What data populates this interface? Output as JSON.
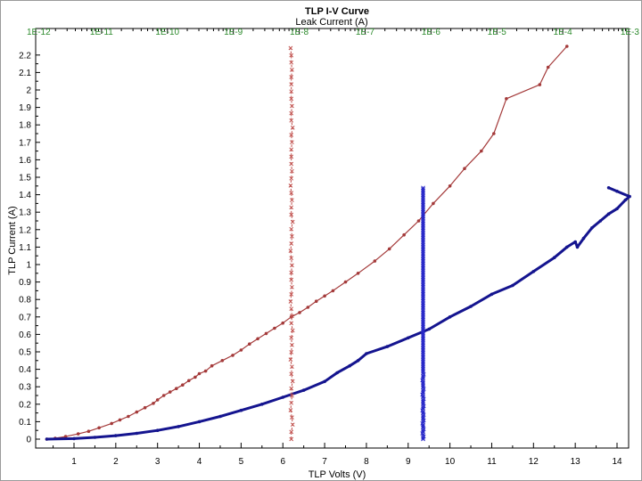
{
  "chart_data": {
    "type": "line",
    "title": "TLP I-V Curve",
    "top_axis_label": "Leak Current (A)",
    "xlabel": "TLP Volts (V)",
    "ylabel": "TLP Current (A)",
    "xlim": [
      0,
      14.3
    ],
    "ylim": [
      0,
      2.25
    ],
    "x_ticks": [
      "1",
      "2",
      "3",
      "4",
      "5",
      "6",
      "7",
      "8",
      "9",
      "10",
      "11",
      "12",
      "13",
      "14"
    ],
    "y_ticks": [
      "0",
      "0.1",
      "0.2",
      "0.3",
      "0.4",
      "0.5",
      "0.6",
      "0.7",
      "0.8",
      "0.9",
      "1",
      "1.1",
      "1.2",
      "1.3",
      "1.4",
      "1.5",
      "1.6",
      "1.7",
      "1.8",
      "1.9",
      "2",
      "2.1",
      "2.2"
    ],
    "top_ticks": [
      "1E-12",
      "1E-11",
      "1E-10",
      "1E-9",
      "1E-8",
      "1E-7",
      "1E-6",
      "1E-5",
      "1E-4",
      "1E-3"
    ],
    "top_scale": "log",
    "top_xlim_exponent": [
      -12,
      -3
    ],
    "grid": false,
    "colors": {
      "iv_red": "#a43a3a",
      "iv_blue": "#14148f",
      "leak_red": "#c0504d",
      "leak_blue": "#2626c8",
      "top_tick_text": "#2e8b2e",
      "frame": "#000000"
    },
    "series": [
      {
        "kind": "iv",
        "axis": "bottom",
        "color_key": "iv_red",
        "x": [
          0.35,
          0.55,
          0.8,
          1.1,
          1.35,
          1.6,
          1.9,
          2.1,
          2.3,
          2.5,
          2.7,
          2.9,
          3.0,
          3.15,
          3.3,
          3.45,
          3.6,
          3.75,
          3.9,
          4.0,
          4.15,
          4.3,
          4.55,
          4.8,
          5.0,
          5.2,
          5.4,
          5.6,
          5.8,
          6.0,
          6.2,
          6.4,
          6.6,
          6.8,
          7.0,
          7.2,
          7.5,
          7.8,
          8.2,
          8.55,
          8.9,
          9.25,
          9.6,
          10.0,
          10.35,
          10.75,
          11.05,
          11.35,
          12.15,
          12.35,
          12.8
        ],
        "y": [
          0.0,
          0.005,
          0.015,
          0.03,
          0.045,
          0.065,
          0.09,
          0.11,
          0.13,
          0.155,
          0.18,
          0.205,
          0.225,
          0.25,
          0.27,
          0.29,
          0.31,
          0.335,
          0.355,
          0.375,
          0.39,
          0.42,
          0.45,
          0.48,
          0.51,
          0.545,
          0.575,
          0.605,
          0.635,
          0.665,
          0.7,
          0.725,
          0.755,
          0.79,
          0.82,
          0.85,
          0.9,
          0.95,
          1.02,
          1.09,
          1.17,
          1.25,
          1.35,
          1.45,
          1.55,
          1.65,
          1.75,
          1.95,
          2.03,
          2.13,
          2.25
        ]
      },
      {
        "kind": "iv",
        "axis": "bottom",
        "color_key": "iv_blue",
        "x": [
          0.35,
          1.0,
          1.5,
          2.0,
          2.5,
          3.0,
          3.5,
          4.0,
          4.5,
          5.0,
          5.5,
          6.0,
          6.5,
          7.0,
          7.3,
          7.6,
          7.8,
          8.0,
          8.5,
          9.0,
          9.5,
          10.0,
          10.5,
          11.0,
          11.5,
          12.0,
          12.5,
          12.8,
          13.0,
          13.05,
          13.2,
          13.4,
          13.6,
          13.8,
          14.0,
          14.2,
          14.3,
          14.0,
          13.8
        ],
        "y": [
          0.0,
          0.003,
          0.01,
          0.02,
          0.033,
          0.05,
          0.072,
          0.1,
          0.13,
          0.165,
          0.2,
          0.24,
          0.28,
          0.33,
          0.38,
          0.42,
          0.45,
          0.49,
          0.53,
          0.58,
          0.63,
          0.7,
          0.76,
          0.83,
          0.88,
          0.96,
          1.04,
          1.1,
          1.13,
          1.1,
          1.15,
          1.21,
          1.25,
          1.29,
          1.32,
          1.37,
          1.39,
          1.42,
          1.44
        ]
      },
      {
        "kind": "leakage",
        "axis": "top",
        "color_key": "leak_red",
        "leak_exponent": [
          -8.12,
          -8.12,
          -8.1,
          -8.11,
          -8.13,
          -8.12,
          -8.11,
          -8.12,
          -8.1,
          -8.12,
          -8.11,
          -8.13,
          -8.12,
          -8.11,
          -8.12,
          -8.1,
          -8.12,
          -8.11,
          -8.12,
          -8.13,
          -8.12,
          -8.11,
          -8.12,
          -8.12,
          -8.11,
          -8.12,
          -8.13,
          -8.12,
          -8.11,
          -8.12,
          -8.1,
          -8.12,
          -8.12,
          -8.11,
          -8.12,
          -8.13,
          -8.12,
          -8.11,
          -8.12,
          -8.12,
          -8.12,
          -8.11,
          -8.12,
          -8.1,
          -8.12,
          -8.12,
          -8.11,
          -8.12,
          -8.12,
          -8.12,
          -8.12,
          -8.11,
          -8.12,
          -8.12,
          -8.13
        ],
        "y_from": 0.0,
        "y_to": 2.24
      },
      {
        "kind": "leakage",
        "axis": "top",
        "color_key": "leak_blue",
        "leak_exponent": [
          -6.12,
          -6.12,
          -6.11,
          -6.12,
          -6.13,
          -6.12,
          -6.12,
          -6.11,
          -6.12,
          -6.12,
          -6.12,
          -6.13,
          -6.12,
          -6.11,
          -6.12,
          -6.12,
          -6.12,
          -6.11,
          -6.12,
          -6.12,
          -6.13,
          -6.12,
          -6.12,
          -6.11,
          -6.12,
          -6.12,
          -6.12,
          -6.12,
          -6.11,
          -6.12,
          -6.12,
          -6.13,
          -6.12,
          -6.12,
          -6.12,
          -6.11,
          -6.12,
          -6.12,
          -6.12,
          -6.12,
          -6.12,
          -6.13,
          -6.12,
          -6.12,
          -6.12,
          -6.11,
          -6.12,
          -6.12,
          -6.12,
          -6.12,
          -6.12,
          -6.12,
          -6.12,
          -6.12,
          -6.12,
          -6.12,
          -6.12,
          -6.12,
          -6.12,
          -6.12,
          -6.12,
          -6.12,
          -6.12,
          -6.12,
          -6.12,
          -6.12,
          -6.12,
          -6.12,
          -6.12,
          -6.12,
          -6.12,
          -6.12,
          -6.12,
          -6.12,
          -6.12,
          -6.12,
          -6.12,
          -6.12,
          -6.12,
          -6.12,
          -6.12,
          -6.12,
          -6.12,
          -6.12,
          -6.12,
          -6.12,
          -6.12,
          -6.12,
          -6.12,
          -6.12,
          -6.12,
          -6.12,
          -6.12,
          -6.12,
          -6.12,
          -6.12,
          -6.12,
          -6.12,
          -6.12,
          -6.12,
          -6.12,
          -6.12,
          -6.12,
          -6.12,
          -6.12,
          -6.12,
          -6.12,
          -6.12,
          -6.12,
          -6.12,
          -6.12,
          -6.12,
          -6.12,
          -6.12,
          -6.12,
          -6.12,
          -6.12,
          -6.12,
          -6.12,
          -6.12,
          -6.12,
          -6.12,
          -6.12,
          -6.12,
          -6.12,
          -6.12,
          -6.12,
          -6.12,
          -6.12,
          -6.12,
          -6.12,
          -6.12,
          -6.12,
          -6.12,
          -6.12,
          -6.12,
          -6.12,
          -6.12,
          -6.12,
          -6.12,
          -6.12,
          -6.12,
          -6.12,
          -6.12,
          -6.12,
          -6.12,
          -6.12,
          -6.12,
          -6.12,
          -6.12,
          -6.12,
          -6.12,
          -6.12,
          -6.12,
          -6.12,
          -6.12,
          -6.12,
          -6.12,
          -6.12,
          -6.12,
          -6.12,
          -6.12,
          -6.12,
          -6.12,
          -6.12,
          -6.12,
          -6.12,
          -6.12,
          -6.12,
          -6.12,
          -6.12,
          -6.12,
          -6.12,
          -6.12,
          -6.12,
          -6.12
        ],
        "y_from": 0.0,
        "y_to": 1.44
      }
    ]
  }
}
